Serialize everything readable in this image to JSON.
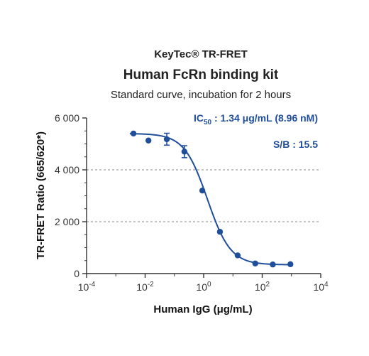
{
  "chart_data": {
    "type": "scatter",
    "title": "KeyTec® TR-FRET",
    "subtitle": "Human FcRn binding kit",
    "description": "Standard curve,  incubation for 2 hours",
    "xlabel": "Human IgG  (μg/mL)",
    "ylabel": "TR-FRET Ratio (665/620*)",
    "x_scale": "log10",
    "xlim": [
      0.0001,
      10000
    ],
    "ylim": [
      0,
      6000
    ],
    "x_ticks": [
      {
        "base": "10",
        "exp": "-4"
      },
      {
        "base": "10",
        "exp": "-2"
      },
      {
        "base": "10",
        "exp": "0"
      },
      {
        "base": "10",
        "exp": "2"
      },
      {
        "base": "10",
        "exp": "4"
      }
    ],
    "y_ticks": [
      {
        "value": 0,
        "label": "0"
      },
      {
        "value": 2000,
        "label": "2 000"
      },
      {
        "value": 4000,
        "label": "4 000"
      },
      {
        "value": 6000,
        "label": "6 000"
      }
    ],
    "grid": "dashed horizontal at 2000 and 4000",
    "points": [
      {
        "x": 0.004,
        "y": 5400,
        "err": 0
      },
      {
        "x": 0.013,
        "y": 5130,
        "err": 0
      },
      {
        "x": 0.055,
        "y": 5180,
        "err": 230
      },
      {
        "x": 0.22,
        "y": 4700,
        "err": 230
      },
      {
        "x": 0.9,
        "y": 3200,
        "err": 0
      },
      {
        "x": 3.6,
        "y": 1610,
        "err": 0
      },
      {
        "x": 14.5,
        "y": 700,
        "err": 0
      },
      {
        "x": 58,
        "y": 390,
        "err": 0
      },
      {
        "x": 230,
        "y": 350,
        "err": 0
      },
      {
        "x": 920,
        "y": 360,
        "err": 0
      }
    ],
    "curve": {
      "model": "4PL",
      "top": 5400,
      "bottom": 340,
      "ec50": 1.34,
      "hill": 1.1
    },
    "annotations": {
      "ic50_prefix": "IC",
      "ic50_sub": "50",
      "ic50_text": " : 1.34 μg/mL (8.96 nM)",
      "sb": "S/B : 15.5"
    },
    "colors": {
      "series": "#1f4e9a",
      "annotation": "#1f4e9a",
      "axis": "#333333",
      "grid": "#888888"
    }
  }
}
